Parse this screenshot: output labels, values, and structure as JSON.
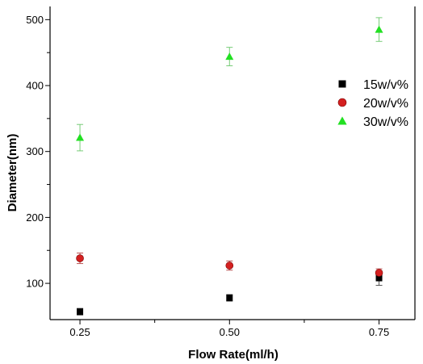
{
  "chart_data": {
    "type": "scatter",
    "title": "",
    "xlabel": "Flow Rate(ml/h)",
    "ylabel": "Diameter(nm)",
    "xlim": [
      0.2,
      0.81
    ],
    "ylim": [
      45,
      520
    ],
    "x_ticks": [
      0.25,
      0.5,
      0.75
    ],
    "x_tick_labels": [
      "0.25",
      "0.50",
      "0.75"
    ],
    "y_ticks": [
      100,
      200,
      300,
      400,
      500
    ],
    "y_tick_labels": [
      "100",
      "200",
      "300",
      "400",
      "500"
    ],
    "legend_placement": "right",
    "grid": false,
    "error_bars": true,
    "series": [
      {
        "name": "15w/v%",
        "marker": "square",
        "color": "#000000",
        "x": [
          0.25,
          0.5,
          0.75
        ],
        "y": [
          57,
          78,
          108
        ],
        "error": [
          5,
          5,
          11
        ]
      },
      {
        "name": "20w/v%",
        "marker": "circle",
        "color": "#d42020",
        "x": [
          0.25,
          0.5,
          0.75
        ],
        "y": [
          138,
          127,
          116
        ],
        "error": [
          8,
          7,
          6
        ]
      },
      {
        "name": "30w/v%",
        "marker": "triangle",
        "color": "#22e022",
        "x": [
          0.25,
          0.5,
          0.75
        ],
        "y": [
          321,
          444,
          485
        ],
        "error": [
          20,
          14,
          18
        ]
      }
    ]
  }
}
